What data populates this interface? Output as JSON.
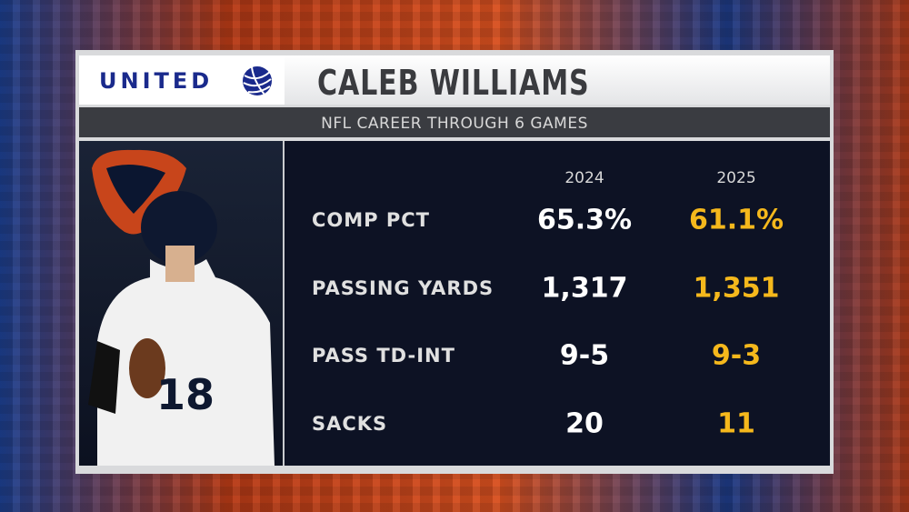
{
  "header": {
    "sponsor": "UNITED",
    "title": "CALEB WILLIAMS",
    "subtitle": "NFL CAREER THROUGH 6 GAMES"
  },
  "table": {
    "columns": [
      "2024",
      "2025"
    ],
    "rows": [
      [
        "COMP PCT",
        "65.3%",
        "61.1%"
      ],
      [
        "PASSING YARDS",
        "1,317",
        "1,351"
      ],
      [
        "PASS TD-INT",
        "9-5",
        "9-3"
      ],
      [
        "SACKS",
        "20",
        "11"
      ]
    ]
  }
}
